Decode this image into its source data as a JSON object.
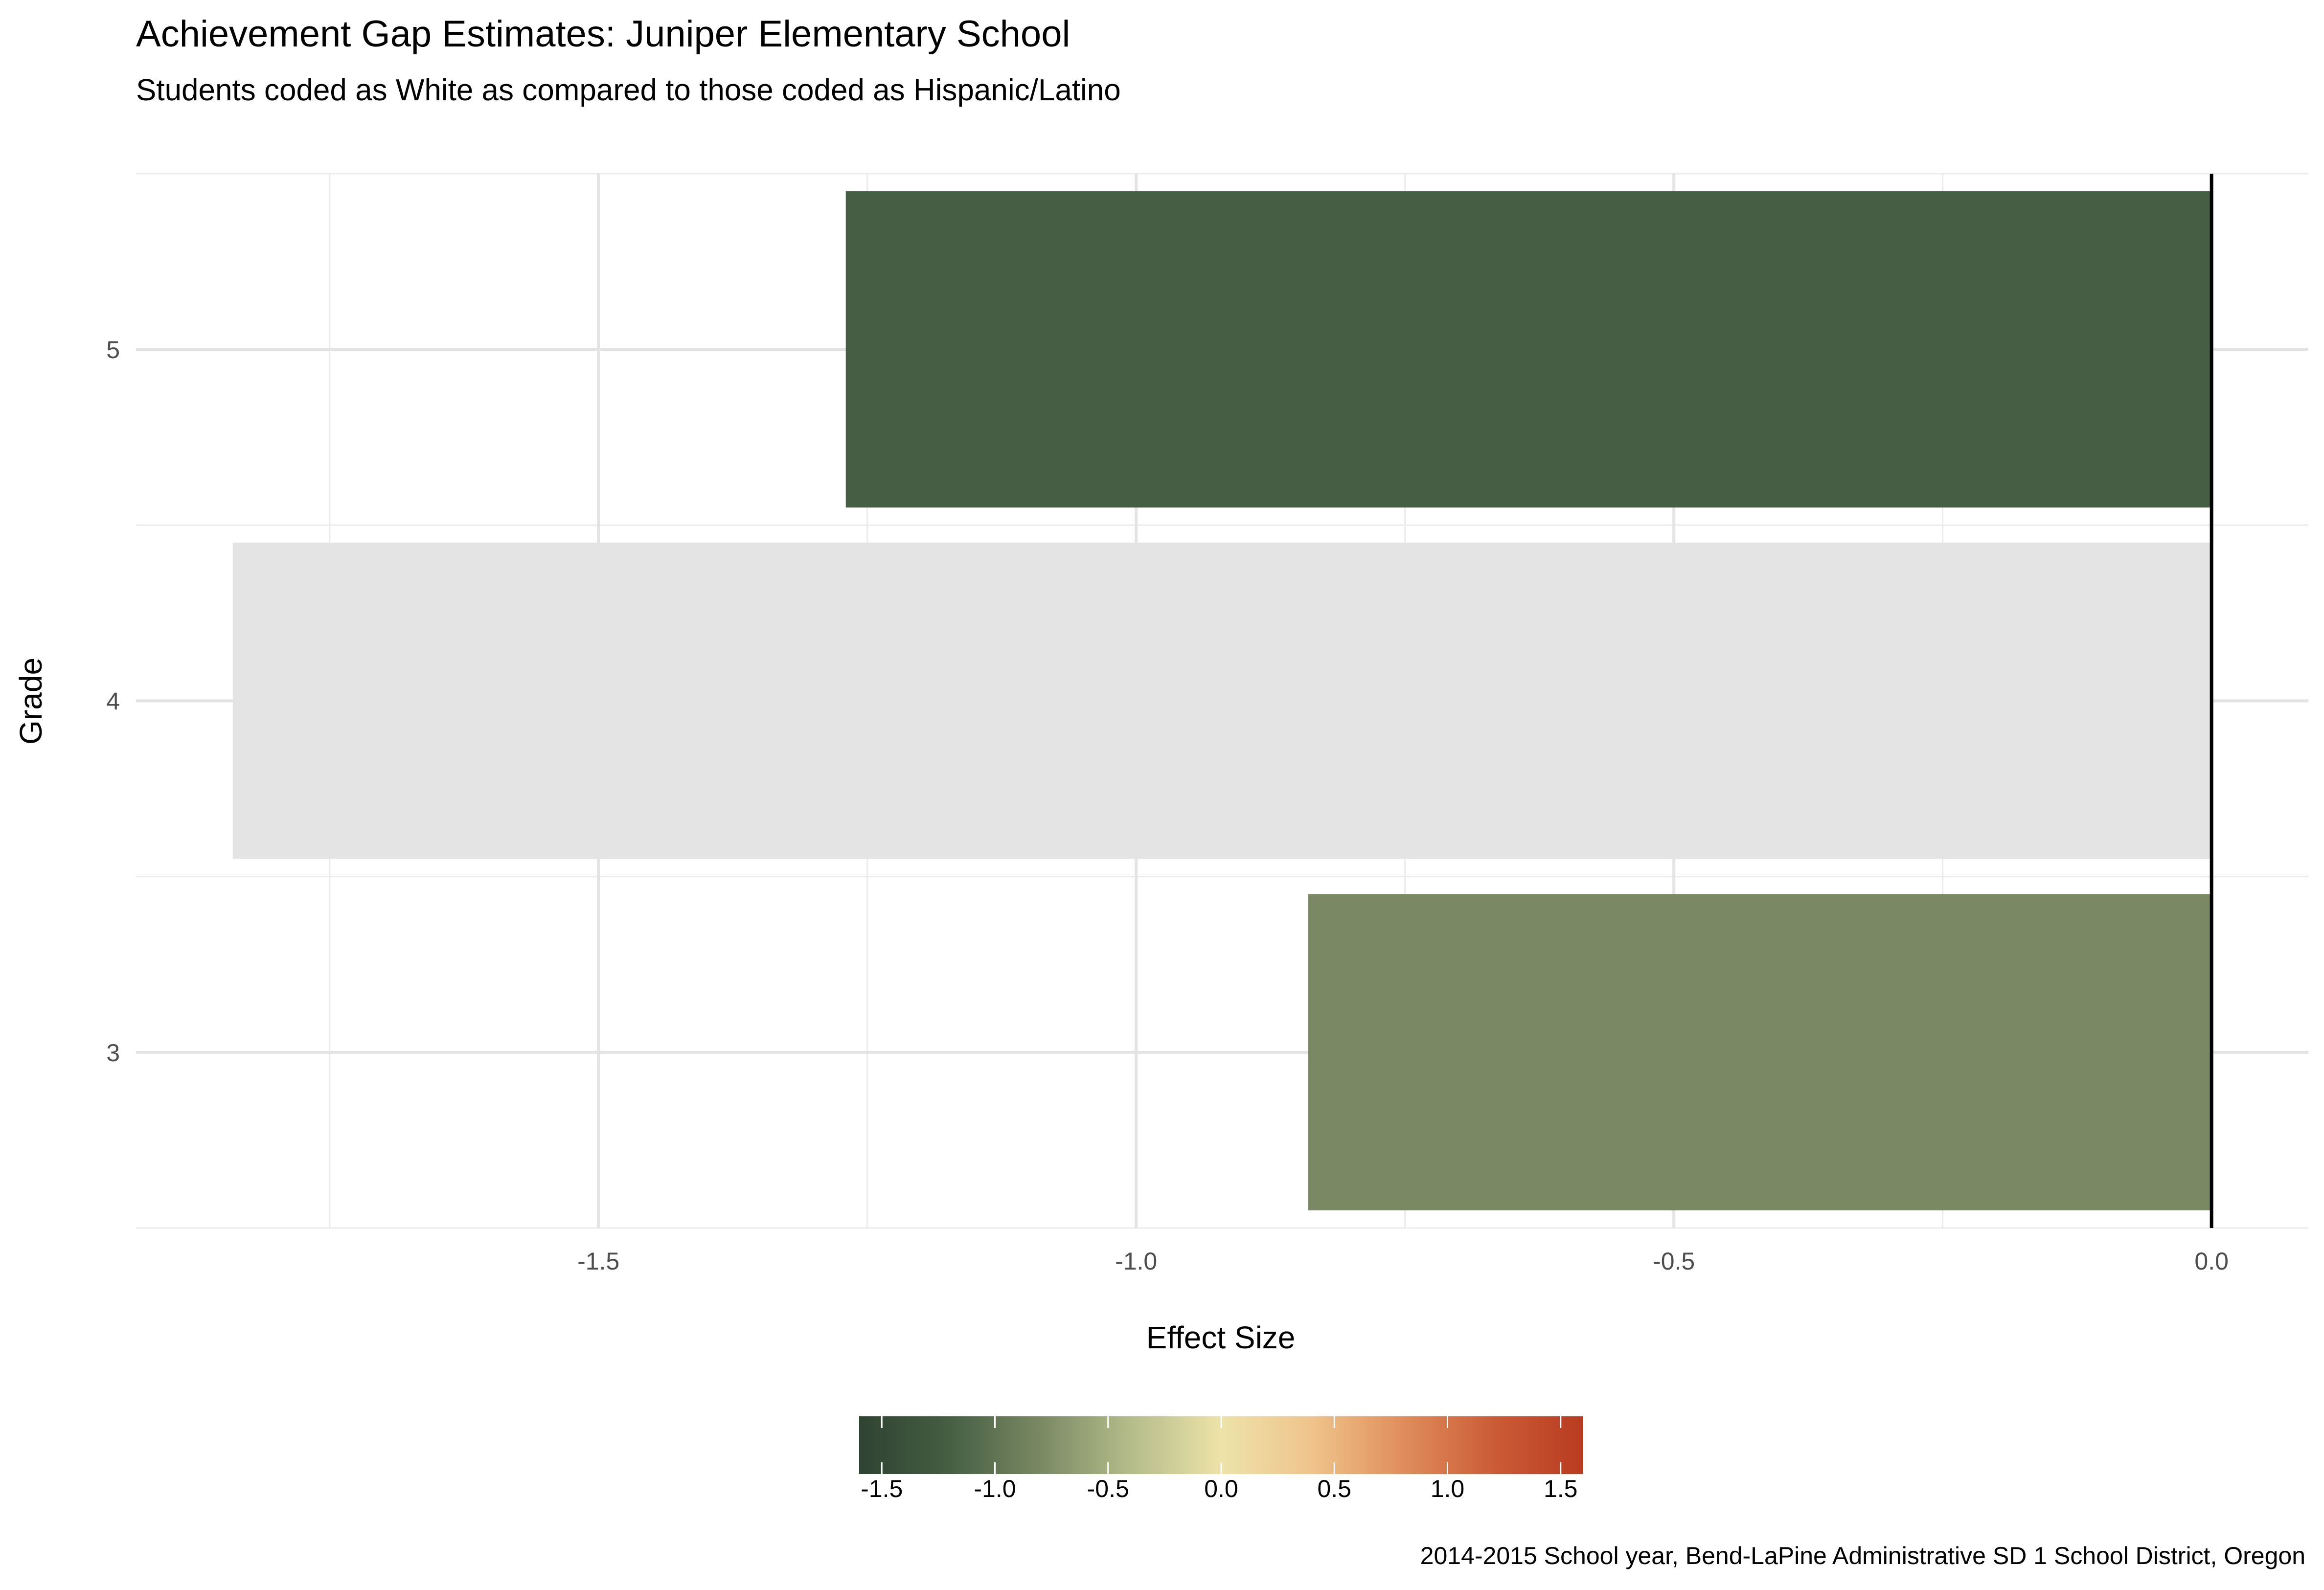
{
  "chart_data": {
    "type": "bar",
    "orientation": "horizontal",
    "title": "Achievement Gap Estimates: Juniper Elementary School",
    "subtitle": "Students coded as White as compared to those coded as Hispanic/Latino",
    "xlabel": "Effect Size",
    "ylabel": "Grade",
    "caption": "2014-2015 School year, Bend-LaPine Administrative SD 1 School District, Oregon",
    "categories": [
      "3",
      "4",
      "5"
    ],
    "values": [
      -0.84,
      -1.84,
      -1.27
    ],
    "bar_colors": [
      "#7a8963",
      "#e4e4e4",
      "#465e43"
    ],
    "xlim": [
      -1.93,
      0.09
    ],
    "x_ticks": [
      -1.5,
      -1.0,
      -0.5,
      0.0
    ],
    "x_tick_labels": [
      "-1.5",
      "-1.0",
      "-0.5",
      "0.0"
    ],
    "grid": true,
    "reference_line": 0.0,
    "legend": {
      "position": "bottom",
      "type": "colorbar",
      "range": [
        -1.6,
        1.6
      ],
      "ticks": [
        -1.5,
        -1.0,
        -0.5,
        0.0,
        0.5,
        1.0,
        1.5
      ],
      "tick_labels": [
        "-1.5",
        "-1.0",
        "-0.5",
        "0.0",
        "0.5",
        "1.0",
        "1.5"
      ],
      "colors": [
        "#2f4332",
        "#465e43",
        "#7a8963",
        "#b4bc8a",
        "#ede3a9",
        "#efc48c",
        "#e08e5c",
        "#cb5c38",
        "#b93b20"
      ]
    }
  }
}
